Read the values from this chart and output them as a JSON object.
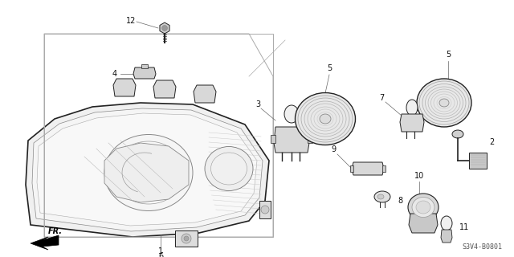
{
  "part_code": "S3V4-B0801",
  "bg_color": "#ffffff",
  "line_color": "#222222",
  "gray_fill": "#e8e8e8",
  "gray_mid": "#aaaaaa",
  "gray_dark": "#666666"
}
